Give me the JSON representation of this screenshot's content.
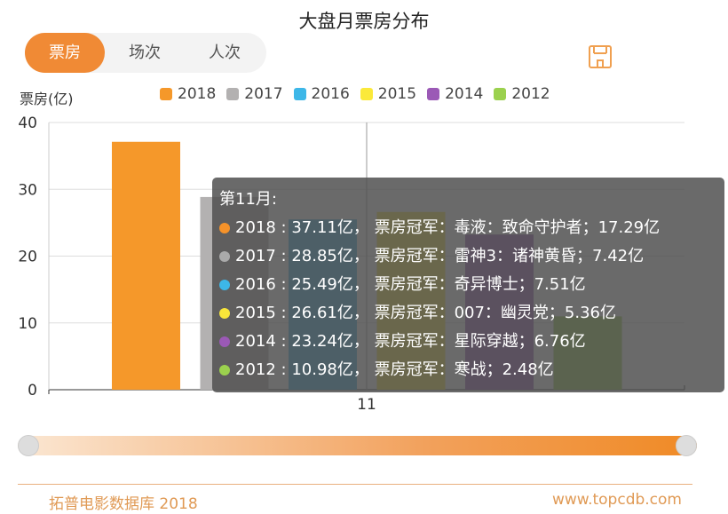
{
  "title": "大盘月票房分布",
  "tabs": [
    {
      "label": "票房",
      "active": true
    },
    {
      "label": "场次"
    },
    {
      "label": "人次"
    }
  ],
  "save_icon": "save-icon",
  "footer": {
    "left": "拓普电影数据库 2018",
    "right": "www.topcdb.com"
  },
  "tooltip": {
    "header": "第11月:",
    "champion_label": "票房冠军",
    "rows": [
      {
        "text": "2018 : 37.11亿，  票房冠军：毒液：致命守护者；17.29亿",
        "color": "#f5922a"
      },
      {
        "text": "2017 : 28.85亿，  票房冠军：雷神3：诸神黄昏；7.42亿",
        "color": "#aaaaaa"
      },
      {
        "text": "2016 : 25.49亿，  票房冠军：奇异博士；7.51亿",
        "color": "#3db7e8"
      },
      {
        "text": "2015 : 26.61亿，  票房冠军：007：幽灵党；5.36亿",
        "color": "#f8e53a"
      },
      {
        "text": "2014 : 23.24亿，  票房冠军：星际穿越；6.76亿",
        "color": "#9b59b6"
      },
      {
        "text": "2012 : 10.98亿，  票房冠军：寒战；2.48亿",
        "color": "#9bd14e"
      }
    ]
  },
  "chart_data": {
    "type": "bar",
    "title": "大盘月票房分布",
    "ylabel": "票房(亿)",
    "xlabel": "",
    "categories": [
      "11"
    ],
    "ylim": [
      0,
      40
    ],
    "yticks": [
      "0",
      "10",
      "20",
      "30",
      "40"
    ],
    "grid": true,
    "legend": "top",
    "series": [
      {
        "name": "2018",
        "values": [
          37.11
        ],
        "color": "#f5982a"
      },
      {
        "name": "2017",
        "values": [
          28.85
        ],
        "color": "#b3b1b1"
      },
      {
        "name": "2016",
        "values": [
          25.49
        ],
        "color": "#3db7e8"
      },
      {
        "name": "2015",
        "values": [
          26.61
        ],
        "color": "#fbe93a"
      },
      {
        "name": "2014",
        "values": [
          23.24
        ],
        "color": "#9b59b6"
      },
      {
        "name": "2012",
        "values": [
          10.98
        ],
        "color": "#9bd14e"
      }
    ]
  }
}
